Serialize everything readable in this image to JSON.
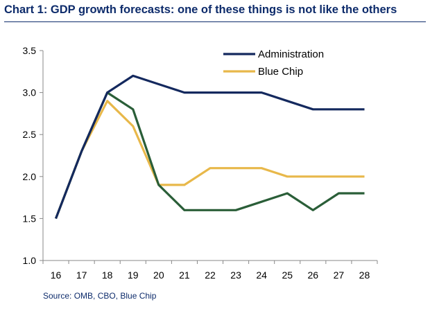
{
  "title": "Chart 1: GDP growth forecasts: one of these things is not like the others",
  "source": "Source: OMB, CBO, Blue Chip",
  "chart_data": {
    "type": "line",
    "title": "Chart 1: GDP growth forecasts: one of these things is not like the others",
    "xlabel": "",
    "ylabel": "",
    "categories": [
      "16",
      "17",
      "18",
      "19",
      "20",
      "21",
      "22",
      "23",
      "24",
      "25",
      "26",
      "27",
      "28"
    ],
    "ylim": [
      1.0,
      3.5
    ],
    "yticks": [
      "1.0",
      "1.5",
      "2.0",
      "2.5",
      "3.0",
      "3.5"
    ],
    "grid": false,
    "legend": "top-right",
    "series": [
      {
        "name": "Administration",
        "color": "#14295e",
        "values": [
          1.5,
          2.3,
          3.0,
          3.2,
          3.1,
          3.0,
          3.0,
          3.0,
          3.0,
          2.9,
          2.8,
          2.8,
          2.8
        ]
      },
      {
        "name": "Blue Chip",
        "color": "#e8b84a",
        "values": [
          1.5,
          2.3,
          2.9,
          2.6,
          1.9,
          1.9,
          2.1,
          2.1,
          2.1,
          2.0,
          2.0,
          2.0,
          2.0
        ]
      },
      {
        "name": "",
        "color": "#2a5e38",
        "values": [
          1.5,
          2.3,
          3.0,
          2.8,
          1.9,
          1.6,
          1.6,
          1.6,
          1.7,
          1.8,
          1.6,
          1.8,
          1.8
        ]
      }
    ]
  }
}
